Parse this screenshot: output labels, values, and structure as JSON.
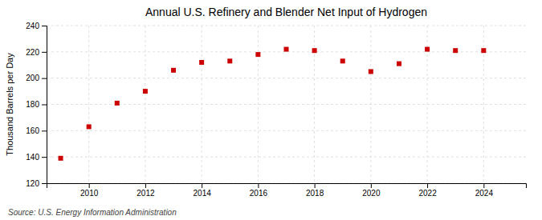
{
  "chart_data": {
    "type": "scatter",
    "title": "Annual U.S. Refinery and Blender Net Input of Hydrogen",
    "ylabel": "Thousand Barrels per Day",
    "annotations": [
      "Source: U.S. Energy Information Administration"
    ],
    "x": [
      2009,
      2010,
      2011,
      2012,
      2013,
      2014,
      2015,
      2016,
      2017,
      2018,
      2019,
      2020,
      2021,
      2022,
      2023,
      2024
    ],
    "values": [
      139,
      163,
      181,
      190,
      206,
      212,
      213,
      218,
      222,
      221,
      213,
      205,
      211,
      222,
      221,
      221
    ],
    "color": "#cc0000",
    "marker": "square",
    "xlim": [
      2008.5,
      2025.5
    ],
    "xticks": [
      2010,
      2012,
      2014,
      2016,
      2018,
      2020,
      2022,
      2024
    ],
    "ylim": [
      120,
      240
    ],
    "yticks": [
      120,
      140,
      160,
      180,
      200,
      220,
      240
    ],
    "grid": true
  }
}
